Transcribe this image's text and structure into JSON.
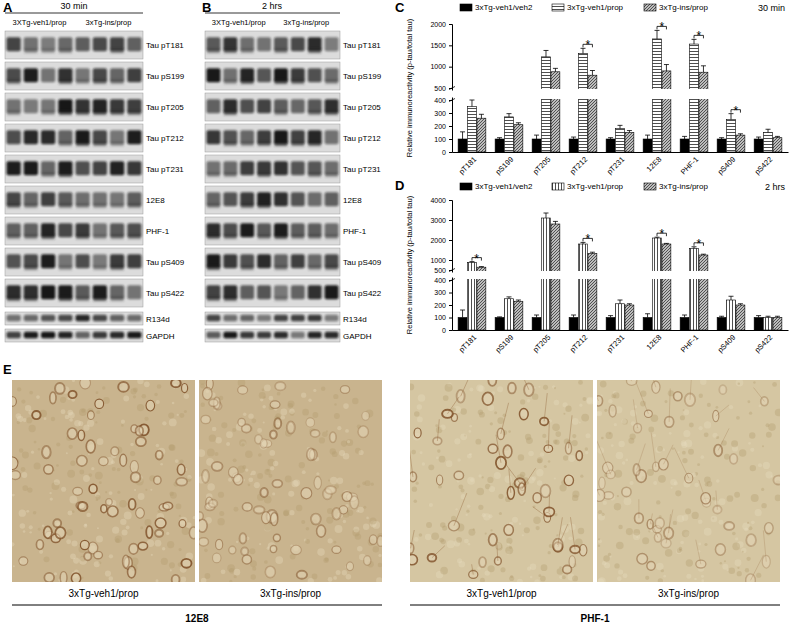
{
  "chart_data": [
    {
      "type": "bar",
      "title": "C",
      "subtitle": "30 min",
      "y_label": "Relative immunoreactivity (p-tau/total tau)",
      "categories": [
        "pT181",
        "pS199",
        "pT205",
        "pT212",
        "pT231",
        "12E8",
        "PHF-1",
        "pS409",
        "pS422"
      ],
      "series": [
        {
          "name": "3xTg-veh1/veh2",
          "color": "#000000",
          "values": [
            100,
            100,
            100,
            100,
            100,
            100,
            100,
            100,
            100
          ],
          "errors": [
            55,
            10,
            30,
            15,
            10,
            30,
            20,
            10,
            15
          ]
        },
        {
          "name": "3xTg-veh1/prop",
          "color": "#ffffff",
          "values": [
            350,
            270,
            1230,
            1310,
            180,
            1650,
            1530,
            250,
            150
          ],
          "errors": [
            50,
            25,
            150,
            120,
            25,
            200,
            110,
            45,
            25
          ]
        },
        {
          "name": "3xTg-ins/prop",
          "color": "#bdbdbd",
          "values": [
            260,
            210,
            880,
            800,
            150,
            900,
            870,
            130,
            110
          ],
          "errors": [
            30,
            15,
            80,
            110,
            15,
            150,
            150,
            10,
            10
          ]
        }
      ],
      "annotations": [
        {
          "category": "pT212",
          "text": "*"
        },
        {
          "category": "12E8",
          "text": "*"
        },
        {
          "category": "PHF-1",
          "text": "*"
        },
        {
          "category": "pS409",
          "text": "*"
        }
      ],
      "ylim": [
        0,
        2000
      ],
      "y_break": [
        400,
        500
      ],
      "yticks": [
        0,
        100,
        200,
        300,
        400,
        500,
        1000,
        1500,
        2000
      ],
      "legend": "top"
    },
    {
      "type": "bar",
      "title": "D",
      "subtitle": "2 hrs",
      "y_label": "Relative immunoreactivity (p-tau/total tau)",
      "categories": [
        "pT181",
        "pS199",
        "pT205",
        "pT212",
        "pT231",
        "12E8",
        "PHF-1",
        "pS409",
        "pS422"
      ],
      "series": [
        {
          "name": "3xTg-veh1/veh2",
          "color": "#000000",
          "values": [
            100,
            100,
            100,
            100,
            100,
            100,
            100,
            100,
            100
          ],
          "errors": [
            60,
            5,
            20,
            20,
            15,
            30,
            20,
            10,
            15
          ]
        },
        {
          "name": "3xTg-veh1/prop",
          "color": "#ffffff",
          "values": [
            880,
            250,
            3100,
            1800,
            210,
            2100,
            1580,
            240,
            100
          ],
          "errors": [
            40,
            15,
            250,
            80,
            30,
            40,
            80,
            30,
            10
          ]
        },
        {
          "name": "3xTg-ins/prop",
          "color": "#bdbdbd",
          "values": [
            640,
            230,
            2800,
            1320,
            200,
            1800,
            1250,
            200,
            100
          ],
          "errors": [
            30,
            10,
            130,
            70,
            10,
            30,
            40,
            10,
            10
          ]
        }
      ],
      "annotations": [
        {
          "category": "pT181",
          "text": "*"
        },
        {
          "category": "pT212",
          "text": "*"
        },
        {
          "category": "12E8",
          "text": "*"
        },
        {
          "category": "PHF-1",
          "text": "*"
        }
      ],
      "ylim": [
        0,
        4000
      ],
      "y_break": [
        400,
        500
      ],
      "yticks": [
        0,
        100,
        200,
        300,
        400,
        500,
        1000,
        2000,
        3000,
        4000
      ],
      "legend": "top"
    }
  ],
  "blots": [
    {
      "label": "A",
      "time": "30 min",
      "groups": [
        "3XTg-veh1/prop",
        "3xTg-ins/prop"
      ],
      "rows": [
        "Tau pT181",
        "Tau pS199",
        "Tau pT205",
        "Tau pT212",
        "Tau pT231",
        "12E8",
        "PHF-1",
        "Tau pS409",
        "Tau pS422",
        "R134d",
        "GAPDH"
      ]
    },
    {
      "label": "B",
      "time": "2 hrs",
      "groups": [
        "3XTg-veh1/prop",
        "3xTg-ins/prop"
      ],
      "rows": [
        "Tau pT181",
        "Tau pS199",
        "Tau pT205",
        "Tau pT212",
        "Tau pT231",
        "12E8",
        "PHF-1",
        "Tau pS409",
        "Tau pS422",
        "R134d",
        "GAPDH"
      ]
    }
  ],
  "micrographs": {
    "label": "E",
    "groups": [
      {
        "stain": "12E8",
        "images": [
          "3xTg-veh1/prop",
          "3xTg-ins/prop"
        ]
      },
      {
        "stain": "PHF-1",
        "images": [
          "3xTg-veh1/prop",
          "3xTg-ins/prop"
        ]
      }
    ]
  }
}
